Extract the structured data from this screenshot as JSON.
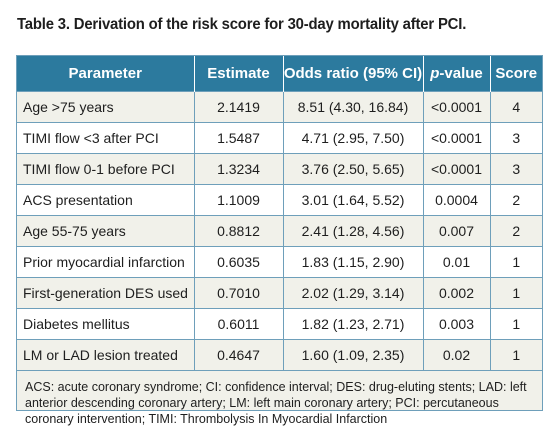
{
  "caption": "Table 3. Derivation of the risk score for 30-day mortality after PCI.",
  "headers": {
    "parameter": "Parameter",
    "estimate": "Estimate",
    "odds_ratio": "Odds ratio (95% CI)",
    "p_italic": "p",
    "p_rest": "-value",
    "score": "Score"
  },
  "rows": [
    {
      "parameter": "Age >75 years",
      "estimate": "2.1419",
      "or": "8.51 (4.30, 16.84)",
      "p": "<0.0001",
      "score": "4"
    },
    {
      "parameter": "TIMI flow <3 after PCI",
      "estimate": "1.5487",
      "or": "4.71 (2.95, 7.50)",
      "p": "<0.0001",
      "score": "3"
    },
    {
      "parameter": "TIMI flow 0-1 before PCI",
      "estimate": "1.3234",
      "or": "3.76 (2.50, 5.65)",
      "p": "<0.0001",
      "score": "3"
    },
    {
      "parameter": "ACS presentation",
      "estimate": "1.1009",
      "or": "3.01 (1.64, 5.52)",
      "p": "0.0004",
      "score": "2"
    },
    {
      "parameter": "Age 55-75 years",
      "estimate": "0.8812",
      "or": "2.41 (1.28, 4.56)",
      "p": "0.007",
      "score": "2"
    },
    {
      "parameter": "Prior myocardial infarction",
      "estimate": "0.6035",
      "or": "1.83 (1.15, 2.90)",
      "p": "0.01",
      "score": "1"
    },
    {
      "parameter": "First-generation DES used",
      "estimate": "0.7010",
      "or": "2.02 (1.29, 3.14)",
      "p": "0.002",
      "score": "1"
    },
    {
      "parameter": "Diabetes mellitus",
      "estimate": "0.6011",
      "or": "1.82 (1.23, 2.71)",
      "p": "0.003",
      "score": "1"
    },
    {
      "parameter": "LM or LAD lesion treated",
      "estimate": "0.4647",
      "or": "1.60 (1.09, 2.35)",
      "p": "0.02",
      "score": "1"
    }
  ],
  "footnote": "ACS: acute coronary syndrome; CI: confidence interval; DES: drug-eluting stents; LAD: left anterior descending coronary artery; LM: left main coronary artery; PCI: percutaneous coronary intervention; TIMI: Thrombolysis In Myocardial Infarction",
  "colors": {
    "header_bg": "#2c7a9e",
    "border": "#6e9fba",
    "alt_row_bg": "#f1f1ea"
  }
}
